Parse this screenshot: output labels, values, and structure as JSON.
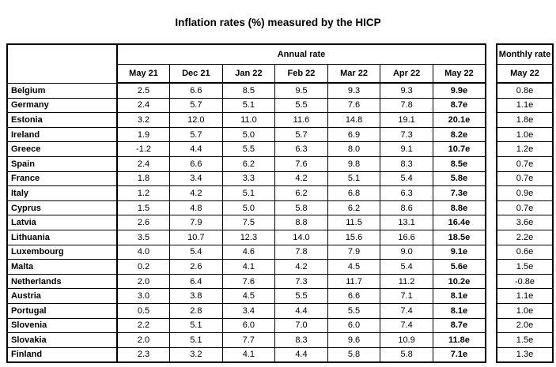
{
  "title": "Inflation rates (%) measured by the HICP",
  "colors": {
    "background": "#ffffff",
    "border": "#000000",
    "text": "#000000"
  },
  "annual_table": {
    "group_header": "Annual rate",
    "columns": [
      "May 21",
      "Dec 21",
      "Jan 22",
      "Feb 22",
      "Mar 22",
      "Apr 22",
      "May 22"
    ],
    "rows": [
      {
        "country": "Belgium",
        "values": [
          "2.5",
          "6.6",
          "8.5",
          "9.5",
          "9.3",
          "9.3",
          "9.9e"
        ]
      },
      {
        "country": "Germany",
        "values": [
          "2.4",
          "5.7",
          "5.1",
          "5.5",
          "7.6",
          "7.8",
          "8.7e"
        ]
      },
      {
        "country": "Estonia",
        "values": [
          "3.2",
          "12.0",
          "11.0",
          "11.6",
          "14.8",
          "19.1",
          "20.1e"
        ]
      },
      {
        "country": "Ireland",
        "values": [
          "1.9",
          "5.7",
          "5.0",
          "5.7",
          "6.9",
          "7.3",
          "8.2e"
        ]
      },
      {
        "country": "Greece",
        "values": [
          "-1.2",
          "4.4",
          "5.5",
          "6.3",
          "8.0",
          "9.1",
          "10.7e"
        ]
      },
      {
        "country": "Spain",
        "values": [
          "2.4",
          "6.6",
          "6.2",
          "7.6",
          "9.8",
          "8.3",
          "8.5e"
        ]
      },
      {
        "country": "France",
        "values": [
          "1.8",
          "3.4",
          "3.3",
          "4.2",
          "5.1",
          "5.4",
          "5.8e"
        ]
      },
      {
        "country": "Italy",
        "values": [
          "1.2",
          "4.2",
          "5.1",
          "6.2",
          "6.8",
          "6.3",
          "7.3e"
        ]
      },
      {
        "country": "Cyprus",
        "values": [
          "1.5",
          "4.8",
          "5.0",
          "5.8",
          "6.2",
          "8.6",
          "8.8e"
        ]
      },
      {
        "country": "Latvia",
        "values": [
          "2.6",
          "7.9",
          "7.5",
          "8.8",
          "11.5",
          "13.1",
          "16.4e"
        ]
      },
      {
        "country": "Lithuania",
        "values": [
          "3.5",
          "10.7",
          "12.3",
          "14.0",
          "15.6",
          "16.6",
          "18.5e"
        ]
      },
      {
        "country": "Luxembourg",
        "values": [
          "4.0",
          "5.4",
          "4.6",
          "7.8",
          "7.9",
          "9.0",
          "9.1e"
        ]
      },
      {
        "country": "Malta",
        "values": [
          "0.2",
          "2.6",
          "4.1",
          "4.2",
          "4.5",
          "5.4",
          "5.6e"
        ]
      },
      {
        "country": "Netherlands",
        "values": [
          "2.0",
          "6.4",
          "7.6",
          "7.3",
          "11.7",
          "11.2",
          "10.2e"
        ]
      },
      {
        "country": "Austria",
        "values": [
          "3.0",
          "3.8",
          "4.5",
          "5.5",
          "6.6",
          "7.1",
          "8.1e"
        ]
      },
      {
        "country": "Portugal",
        "values": [
          "0.5",
          "2.8",
          "3.4",
          "4.4",
          "5.5",
          "7.4",
          "8.1e"
        ]
      },
      {
        "country": "Slovenia",
        "values": [
          "2.2",
          "5.1",
          "6.0",
          "7.0",
          "6.0",
          "7.4",
          "8.7e"
        ]
      },
      {
        "country": "Slovakia",
        "values": [
          "2.0",
          "5.1",
          "7.7",
          "8.3",
          "9.6",
          "10.9",
          "11.8e"
        ]
      },
      {
        "country": "Finland",
        "values": [
          "2.3",
          "3.2",
          "4.1",
          "4.4",
          "5.8",
          "5.8",
          "7.1e"
        ]
      }
    ]
  },
  "monthly_table": {
    "group_header": "Monthly rate",
    "column": "May 22",
    "values": [
      "0.8e",
      "1.1e",
      "1.8e",
      "1.0e",
      "1.2e",
      "0.7e",
      "0.7e",
      "0.9e",
      "0.7e",
      "3.6e",
      "2.2e",
      "0.6e",
      "1.5e",
      "-0.8e",
      "1.1e",
      "1.0e",
      "2.0e",
      "1.5e",
      "1.3e"
    ]
  }
}
